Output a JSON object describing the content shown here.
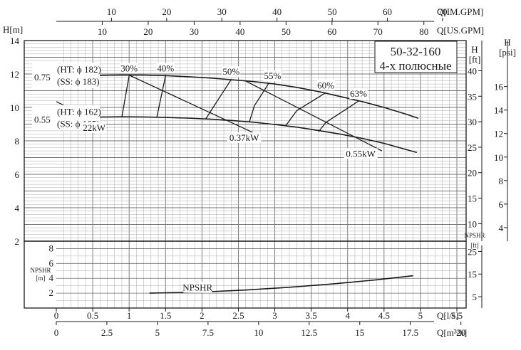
{
  "chart_data": {
    "type": "line",
    "model": "50-32-160",
    "subtitle": "4-х полюсные",
    "axes": {
      "q_ls": {
        "label": "Q[l/s]",
        "range": [
          0,
          5.5
        ],
        "ticks": [
          0,
          0.5,
          1,
          1.5,
          2,
          2.5,
          3,
          3.5,
          4,
          4.5,
          5,
          5.5
        ],
        "tick_labels": [
          "0",
          "0.5",
          "1",
          "1.5",
          "2",
          "2.5",
          "3",
          "3.5",
          "4",
          "4.5",
          "5",
          "5.5"
        ]
      },
      "q_m3h": {
        "label": "Q[m³/h]",
        "range": [
          0,
          20
        ],
        "ticks": [
          0,
          2.5,
          5,
          7.5,
          10,
          12.5,
          15,
          17.5,
          20
        ],
        "tick_labels": [
          "0",
          "2.5",
          "5",
          "7.5",
          "10",
          "12.5",
          "15",
          "17.5",
          "20"
        ]
      },
      "q_usgpm": {
        "label": "Q[US.GPM]",
        "ticks": [
          10,
          20,
          30,
          40,
          50,
          60,
          70,
          80
        ],
        "tick_labels": [
          "10",
          "20",
          "30",
          "40",
          "50",
          "60",
          "70",
          "80"
        ]
      },
      "q_imgpm": {
        "label": "Q[IM.GPM]",
        "ticks": [
          10,
          20,
          30,
          40,
          50,
          60,
          70
        ],
        "tick_labels": [
          "10",
          "20",
          "30",
          "40",
          "50",
          "60",
          "70"
        ]
      },
      "h_m": {
        "label": "H[m]",
        "range": [
          2,
          14
        ],
        "ticks": [
          2,
          4,
          6,
          8,
          10,
          12,
          14
        ],
        "tick_labels": [
          "2",
          "4",
          "6",
          "8",
          "10",
          "12",
          "14"
        ]
      },
      "h_ft": {
        "label_top": "H",
        "label_bottom": "[ft]",
        "ticks": [
          10,
          15,
          20,
          25,
          30,
          35,
          40
        ],
        "tick_labels": [
          "10",
          "15",
          "20",
          "25",
          "30",
          "35",
          "40"
        ]
      },
      "h_psi": {
        "label_top": "H",
        "label_bottom": "[psi]",
        "ticks": [
          4,
          6,
          8,
          10,
          12,
          14,
          16
        ],
        "tick_labels": [
          "4",
          "6",
          "8",
          "10",
          "12",
          "14",
          "16"
        ]
      },
      "npshr_m": {
        "label_top": "NPSHR",
        "label_bottom": "[m]",
        "range": [
          0,
          9
        ],
        "ticks": [
          2,
          4,
          6,
          8
        ],
        "tick_labels": [
          "2",
          "4",
          "6",
          "8"
        ]
      },
      "npshr_ft": {
        "label_top": "NPSHR",
        "label_bottom": "[ft]",
        "ticks": [
          5,
          15,
          25
        ],
        "tick_labels": [
          "5",
          "15",
          "25"
        ]
      }
    },
    "series": [
      {
        "name": "0.75",
        "labels": [
          "(HT: ϕ 182)",
          "(SS: ϕ 183)"
        ],
        "x": [
          0,
          0.3,
          0.6,
          0.9,
          1.2,
          1.5,
          1.8,
          2.1,
          2.4,
          2.7,
          3.0,
          3.3,
          3.6,
          3.9,
          4.2,
          4.5,
          4.8,
          4.97
        ],
        "y": [
          11.83,
          11.88,
          11.92,
          11.94,
          11.93,
          11.9,
          11.84,
          11.76,
          11.66,
          11.55,
          11.4,
          11.2,
          10.95,
          10.65,
          10.35,
          10.0,
          9.6,
          9.35
        ]
      },
      {
        "name": "0.55",
        "labels": [
          "(HT: ϕ 162)",
          "(SS: ϕ 165)"
        ],
        "x": [
          0,
          0.3,
          0.6,
          0.9,
          1.2,
          1.5,
          1.8,
          2.1,
          2.4,
          2.7,
          3.0,
          3.3,
          3.6,
          3.9,
          4.2,
          4.5,
          4.95
        ],
        "y": [
          9.3,
          9.38,
          9.42,
          9.44,
          9.43,
          9.4,
          9.36,
          9.3,
          9.22,
          9.12,
          8.98,
          8.82,
          8.62,
          8.4,
          8.15,
          7.85,
          7.3
        ]
      },
      {
        "name": "NPSHR",
        "x": [
          1.28,
          2.0,
          2.6,
          3.2,
          3.8,
          4.4,
          4.9
        ],
        "y": [
          2.0,
          2.15,
          2.42,
          2.8,
          3.25,
          3.8,
          4.35
        ]
      }
    ],
    "power_lines": [
      {
        "label": "22kW",
        "x": [
          0,
          0.55
        ],
        "y": [
          10.35,
          9.17
        ]
      },
      {
        "label": "0.37kW",
        "x": [
          1.0,
          2.7
        ],
        "y": [
          11.93,
          8.5
        ]
      },
      {
        "label": "0.55kW",
        "x": [
          2.6,
          4.47
        ],
        "y": [
          11.58,
          7.4
        ]
      }
    ],
    "efficiency_lines": [
      {
        "label": "30%",
        "x": [
          1.0,
          0.9
        ],
        "y": [
          11.9,
          9.44
        ]
      },
      {
        "label": "40%",
        "x": [
          1.5,
          1.38
        ],
        "y": [
          11.9,
          9.4
        ]
      },
      {
        "label": "50%",
        "x": [
          2.4,
          2.05
        ],
        "y": [
          11.66,
          9.3
        ]
      },
      {
        "label": "55%",
        "x": [
          2.92,
          2.72,
          2.65
        ],
        "y": [
          11.46,
          10.1,
          9.12
        ]
      },
      {
        "label": "60%",
        "x": [
          3.7,
          3.3,
          3.15
        ],
        "y": [
          10.88,
          9.8,
          8.9
        ]
      },
      {
        "label": "63%",
        "x": [
          4.15,
          3.7,
          3.6
        ],
        "y": [
          10.38,
          9.1,
          8.55
        ]
      }
    ],
    "annotations": [
      {
        "text": "30%",
        "x": 1.0,
        "y": 12.15
      },
      {
        "text": "40%",
        "x": 1.5,
        "y": 12.15
      },
      {
        "text": "50%",
        "x": 2.4,
        "y": 11.95
      },
      {
        "text": "55%",
        "x": 2.97,
        "y": 11.7
      },
      {
        "text": "60%",
        "x": 3.7,
        "y": 11.13
      },
      {
        "text": "63%",
        "x": 4.15,
        "y": 10.63
      },
      {
        "text": "0.37kW",
        "x": 2.58,
        "y": 8.0
      },
      {
        "text": "0.55kW",
        "x": 4.18,
        "y": 7.05
      },
      {
        "text": "22kW",
        "x": 0.52,
        "y": 8.6
      },
      {
        "text": "NPSHR",
        "x": 1.94,
        "y": 2.35
      }
    ],
    "grid": true
  }
}
